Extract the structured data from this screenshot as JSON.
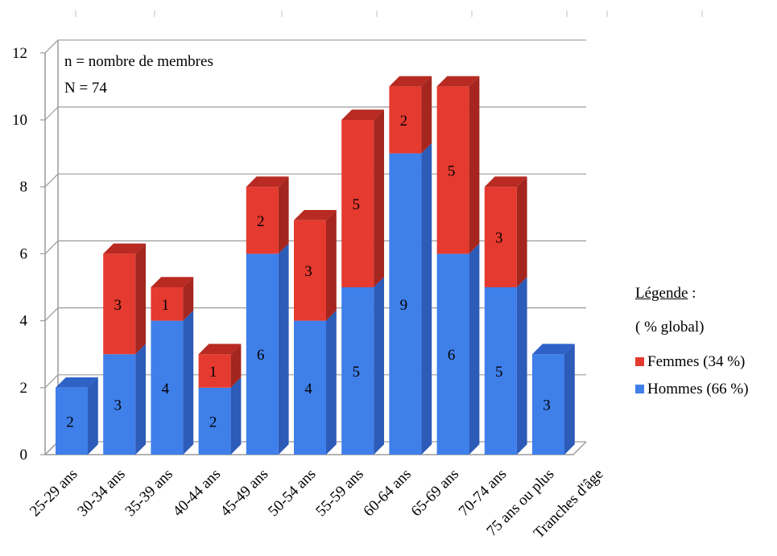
{
  "chart_data": {
    "type": "bar",
    "stacked": true,
    "three_d": true,
    "categories": [
      "25-29 ans",
      "30-34 ans",
      "35-39 ans",
      "40-44 ans",
      "45-49 ans",
      "50-54 ans",
      "55-59 ans",
      "60-64 ans",
      "65-69 ans",
      "70-74 ans",
      "75 ans ou plus"
    ],
    "series": [
      {
        "name": "Hommes (66 %)",
        "color": "#3f7fea",
        "values": [
          2,
          3,
          4,
          2,
          6,
          4,
          5,
          9,
          6,
          5,
          3
        ]
      },
      {
        "name": "Femmes (34 %)",
        "color": "#e53a2f",
        "values": [
          0,
          3,
          1,
          1,
          2,
          3,
          5,
          2,
          5,
          3,
          0
        ]
      }
    ],
    "xlabel": "Tranches d'âge",
    "yticks": [
      "0",
      "2",
      "4",
      "6",
      "8",
      "10",
      "12"
    ],
    "ylim": [
      0,
      12
    ],
    "grid": true,
    "annotations": [
      "n = nombre de membres",
      "N = 74"
    ],
    "legend": {
      "title": "Légende",
      "title_suffix": " :",
      "subtitle": "( % global)",
      "placement": "right"
    }
  }
}
